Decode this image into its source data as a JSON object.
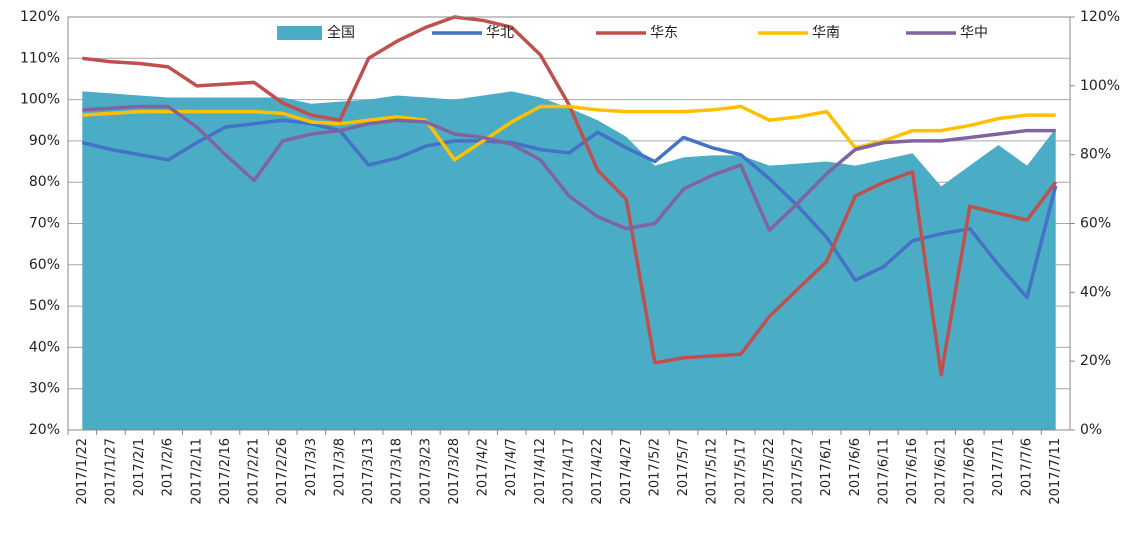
{
  "chart_data": {
    "type": "combo",
    "categories": [
      "2017/1/22",
      "2017/1/27",
      "2017/2/1",
      "2017/2/6",
      "2017/2/11",
      "2017/2/16",
      "2017/2/21",
      "2017/2/26",
      "2017/3/3",
      "2017/3/8",
      "2017/3/13",
      "2017/3/18",
      "2017/3/23",
      "2017/3/28",
      "2017/4/2",
      "2017/4/7",
      "2017/4/12",
      "2017/4/17",
      "2017/4/22",
      "2017/4/27",
      "2017/5/2",
      "2017/5/7",
      "2017/5/12",
      "2017/5/17",
      "2017/5/22",
      "2017/5/27",
      "2017/6/1",
      "2017/6/6",
      "2017/6/11",
      "2017/6/16",
      "2017/6/21",
      "2017/6/26",
      "2017/7/1",
      "2017/7/6",
      "2017/7/11"
    ],
    "series": [
      {
        "name": "全国",
        "type": "area",
        "color": "#4bacc6",
        "values": [
          102,
          101.5,
          101,
          100.5,
          100.5,
          100.5,
          100.5,
          100.5,
          99,
          99.5,
          100,
          101,
          100.5,
          100,
          101,
          102,
          100.5,
          98,
          95,
          91,
          84,
          86,
          86.5,
          86.5,
          84,
          84.5,
          85,
          84,
          85.5,
          87,
          79,
          84,
          89,
          84,
          93
        ]
      },
      {
        "name": "华北",
        "type": "line",
        "axis": "y2",
        "color": "#4472c4",
        "values": [
          83.5,
          81.5,
          80,
          78.5,
          83.5,
          88,
          89,
          90,
          89,
          87,
          77,
          79,
          82.5,
          84,
          84,
          83.5,
          81.5,
          80.5,
          86.5,
          82,
          78,
          85,
          82,
          80,
          73,
          65,
          56,
          43.5,
          47.5,
          55,
          57,
          58.5,
          48,
          38.5,
          71
        ]
      },
      {
        "name": "华东",
        "type": "line",
        "axis": "y2",
        "color": "#c0504d",
        "values": [
          108,
          107,
          106.5,
          105.5,
          100,
          100.5,
          101,
          95,
          91.5,
          90,
          108,
          113,
          117,
          120,
          119,
          117,
          109,
          94.5,
          75.5,
          67,
          19.5,
          21,
          21.5,
          22,
          33,
          41,
          49,
          68,
          72,
          75,
          16,
          65,
          63,
          61,
          72
        ]
      },
      {
        "name": "华南",
        "type": "line",
        "axis": "y2",
        "color": "#ffc000",
        "values": [
          91.5,
          92,
          92.5,
          92.5,
          92.5,
          92.5,
          92.5,
          92,
          89.5,
          89,
          90,
          91,
          90,
          78.5,
          84,
          89.5,
          94,
          94,
          93,
          92.5,
          92.5,
          92.5,
          93,
          94,
          90,
          91,
          92.5,
          82,
          84,
          87,
          87,
          88.5,
          90.5,
          91.5,
          91.5
        ]
      },
      {
        "name": "华中",
        "type": "line",
        "axis": "y2",
        "color": "#8064a2",
        "values": [
          93,
          93.5,
          94,
          94,
          88,
          80,
          72.5,
          84,
          86,
          87,
          89,
          90,
          89.5,
          86,
          85,
          83,
          78.5,
          68,
          62,
          58.5,
          60,
          70,
          74,
          77,
          58,
          66,
          74.5,
          81.5,
          83.5,
          84,
          84,
          85,
          86,
          87,
          87
        ]
      }
    ],
    "ylim": [
      20,
      120
    ],
    "yticks": [
      {
        "value": 20,
        "label": "20%"
      },
      {
        "value": 30,
        "label": "30%"
      },
      {
        "value": 40,
        "label": "40%"
      },
      {
        "value": 50,
        "label": "50%"
      },
      {
        "value": 60,
        "label": "60%"
      },
      {
        "value": 70,
        "label": "70%"
      },
      {
        "value": 80,
        "label": "80%"
      },
      {
        "value": 90,
        "label": "90%"
      },
      {
        "value": 100,
        "label": "100%"
      },
      {
        "value": 110,
        "label": "110%"
      },
      {
        "value": 120,
        "label": "120%"
      }
    ],
    "y2lim": [
      0,
      120
    ],
    "y2ticks": [
      {
        "value": 0,
        "label": "0%"
      },
      {
        "value": 20,
        "label": "20%"
      },
      {
        "value": 40,
        "label": "40%"
      },
      {
        "value": 60,
        "label": "60%"
      },
      {
        "value": 80,
        "label": "80%"
      },
      {
        "value": 100,
        "label": "100%"
      },
      {
        "value": 120,
        "label": "120%"
      }
    ],
    "grid": true,
    "legend": "top"
  }
}
